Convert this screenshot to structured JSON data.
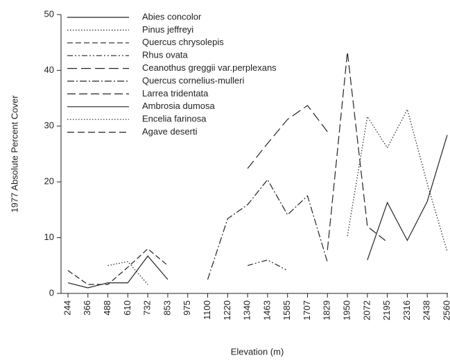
{
  "chart_data": {
    "type": "line",
    "xlabel": "Elevation (m)",
    "ylabel": "1977 Absolute Percent Cover",
    "categories": [
      "244",
      "366",
      "488",
      "610",
      "732",
      "853",
      "975",
      "1100",
      "1220",
      "1340",
      "1463",
      "1585",
      "1707",
      "1829",
      "1950",
      "2072",
      "2195",
      "2316",
      "2438",
      "2560"
    ],
    "ylim": [
      0,
      50
    ],
    "yticks": [
      0,
      10,
      20,
      30,
      40,
      50
    ],
    "legend": "top-left",
    "series": [
      {
        "name": "Abies concolor",
        "color": "#222222",
        "dash": "none",
        "values": [
          1.9,
          1.0,
          1.9,
          1.9,
          6.7,
          2.5,
          null,
          null,
          null,
          null,
          null,
          null,
          null,
          null,
          null,
          null,
          null,
          null,
          null,
          null
        ]
      },
      {
        "name": "Pinus jeffreyi",
        "color": "#222222",
        "dash": "1.5,2.5",
        "values": [
          null,
          null,
          5.0,
          5.7,
          1.6,
          null,
          null,
          null,
          null,
          null,
          null,
          null,
          null,
          null,
          null,
          null,
          null,
          null,
          null,
          null
        ]
      },
      {
        "name": "Quercus chrysolepis",
        "color": "#222222",
        "dash": "8,4",
        "values": [
          4.1,
          1.6,
          1.6,
          4.7,
          8.0,
          5.0,
          null,
          null,
          null,
          null,
          null,
          null,
          null,
          null,
          null,
          null,
          null,
          null,
          null,
          null
        ]
      },
      {
        "name": "Rhus ovata",
        "color": "#222222",
        "dash": "8,3,2,3,2,3",
        "values": [
          null,
          null,
          null,
          null,
          null,
          null,
          null,
          null,
          null,
          5.0,
          6.0,
          4.1,
          null,
          null,
          null,
          null,
          null,
          null,
          null,
          null
        ]
      },
      {
        "name": "Ceanothus greggii var.perplexans",
        "color": "#222222",
        "dash": "14,6",
        "values": [
          null,
          null,
          null,
          null,
          null,
          null,
          null,
          null,
          null,
          22.4,
          26.9,
          31.2,
          33.7,
          29.0,
          null,
          null,
          null,
          null,
          null,
          null
        ]
      },
      {
        "name": "Quercus cornelius-mulleri",
        "color": "#222222",
        "dash": "10,3,2,3",
        "values": [
          null,
          null,
          null,
          null,
          null,
          null,
          null,
          2.5,
          13.4,
          15.9,
          20.4,
          14.1,
          17.5,
          5.6,
          null,
          null,
          null,
          null,
          null,
          null
        ]
      },
      {
        "name": "Larrea tridentata",
        "color": "#222222",
        "dash": "12,5",
        "values": [
          null,
          null,
          null,
          null,
          null,
          null,
          null,
          null,
          null,
          null,
          null,
          null,
          null,
          7.8,
          43.3,
          12.0,
          9.2,
          null,
          null,
          null
        ]
      },
      {
        "name": "Ambrosia dumosa",
        "color": "#222222",
        "dash": "none",
        "values": [
          null,
          null,
          null,
          null,
          null,
          null,
          null,
          null,
          null,
          null,
          null,
          null,
          null,
          null,
          null,
          6.0,
          16.3,
          9.5,
          16.5,
          28.4
        ]
      },
      {
        "name": "Encelia farinosa",
        "color": "#222222",
        "dash": "1.5,2.5",
        "values": [
          null,
          null,
          null,
          null,
          null,
          null,
          null,
          null,
          null,
          null,
          null,
          null,
          null,
          null,
          10.3,
          31.7,
          26.1,
          33.0,
          19.7,
          7.5
        ]
      },
      {
        "name": "Agave deserti",
        "color": "#222222",
        "dash": "10,5",
        "values": [
          null,
          null,
          null,
          null,
          null,
          null,
          null,
          null,
          null,
          null,
          null,
          null,
          null,
          null,
          null,
          null,
          null,
          null,
          null,
          null
        ]
      }
    ]
  }
}
